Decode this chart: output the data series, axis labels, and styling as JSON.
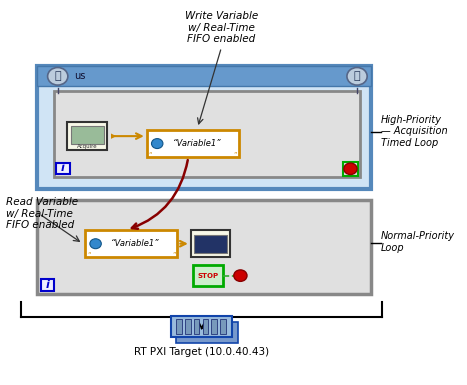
{
  "bg_color": "#ffffff",
  "annotations": {
    "write_variable": "Write Variable\nw/ Real-Time\nFIFO enabled",
    "read_variable": "Read Variable\nw/ Real-Time\nFIFO enabled",
    "high_priority": "High-Priority\n— Acquisition\nTimed Loop",
    "normal_priority": "Normal-Priority\nLoop",
    "rt_pxi": "RT PXI Target (10.0.40.43)"
  }
}
